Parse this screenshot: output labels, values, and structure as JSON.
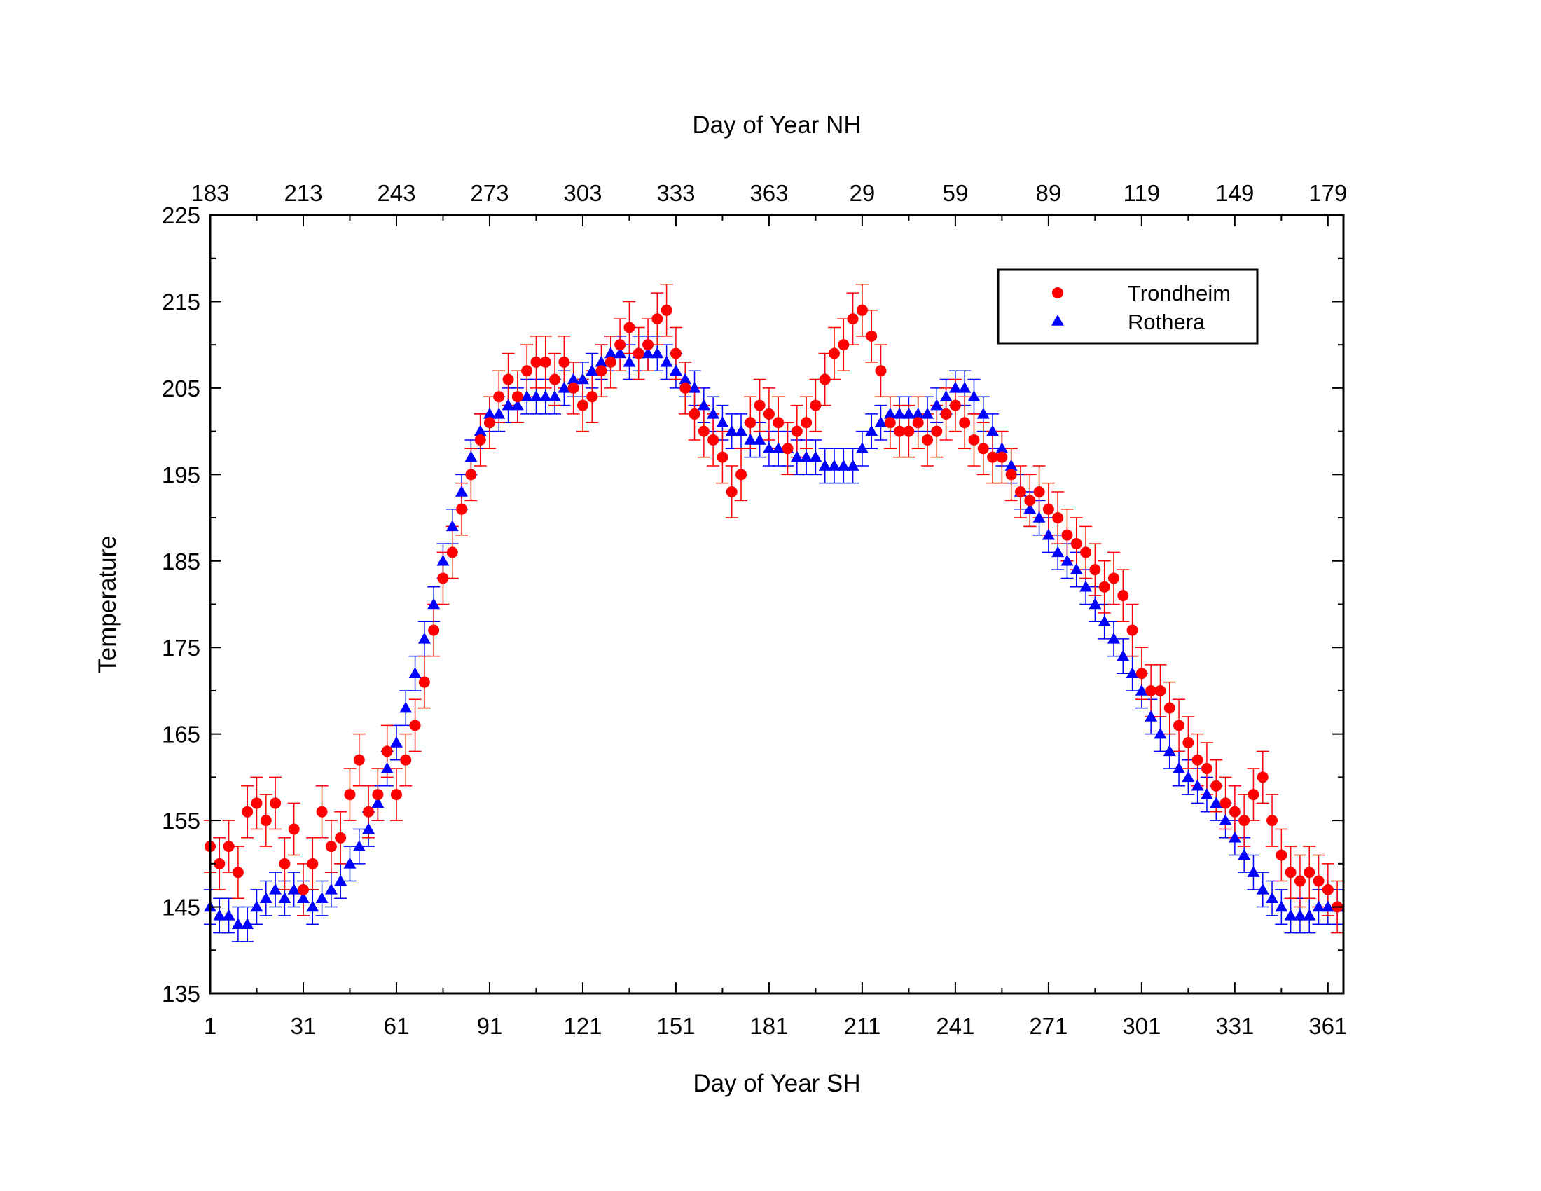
{
  "chart_data": {
    "type": "scatter",
    "title": "",
    "xlabel": "Day of Year SH",
    "x2label": "Day of Year NH",
    "ylabel": "Temperature",
    "xlim": [
      1,
      366
    ],
    "ylim": [
      135,
      225
    ],
    "x_ticks": [
      "1",
      "31",
      "61",
      "91",
      "121",
      "151",
      "181",
      "211",
      "241",
      "271",
      "301",
      "331",
      "361"
    ],
    "x2_ticks": [
      "183",
      "213",
      "243",
      "273",
      "303",
      "333",
      "363",
      "29",
      "59",
      "89",
      "119",
      "149",
      "179"
    ],
    "y_ticks": [
      "135",
      "145",
      "155",
      "165",
      "175",
      "185",
      "195",
      "205",
      "215",
      "225"
    ],
    "grid": false,
    "legend_position": "top-right",
    "error_bars": true,
    "series": [
      {
        "name": "Trondheim",
        "color": "#ff0000",
        "marker": "circle",
        "error": 3,
        "x": [
          1,
          4,
          7,
          10,
          13,
          16,
          19,
          22,
          25,
          28,
          31,
          34,
          37,
          40,
          43,
          46,
          49,
          52,
          55,
          58,
          61,
          64,
          67,
          70,
          73,
          76,
          79,
          82,
          85,
          88,
          91,
          94,
          97,
          100,
          103,
          106,
          109,
          112,
          115,
          118,
          121,
          124,
          127,
          130,
          133,
          136,
          139,
          142,
          145,
          148,
          151,
          154,
          157,
          160,
          163,
          166,
          169,
          172,
          175,
          178,
          181,
          184,
          187,
          190,
          193,
          196,
          199,
          202,
          205,
          208,
          211,
          214,
          217,
          220,
          223,
          226,
          229,
          232,
          235,
          238,
          241,
          244,
          247,
          250,
          253,
          256,
          259,
          262,
          265,
          268,
          271,
          274,
          277,
          280,
          283,
          286,
          289,
          292,
          295,
          298,
          301,
          304,
          307,
          310,
          313,
          316,
          319,
          322,
          325,
          328,
          331,
          334,
          337,
          340,
          343,
          346,
          349,
          352,
          355,
          358,
          361,
          364
        ],
        "y": [
          152,
          150,
          152,
          149,
          156,
          157,
          155,
          157,
          150,
          154,
          147,
          150,
          156,
          152,
          153,
          158,
          162,
          156,
          158,
          163,
          158,
          162,
          166,
          171,
          177,
          183,
          186,
          191,
          195,
          199,
          201,
          204,
          206,
          204,
          207,
          208,
          208,
          206,
          208,
          205,
          203,
          204,
          207,
          208,
          210,
          212,
          209,
          210,
          213,
          214,
          209,
          205,
          202,
          200,
          199,
          197,
          193,
          195,
          201,
          203,
          202,
          201,
          198,
          200,
          201,
          203,
          206,
          209,
          210,
          213,
          214,
          211,
          207,
          201,
          200,
          200,
          201,
          199,
          200,
          202,
          203,
          201,
          199,
          198,
          197,
          197,
          195,
          193,
          192,
          193,
          191,
          190,
          188,
          187,
          186,
          184,
          182,
          183,
          181,
          177,
          172,
          170,
          170,
          168,
          166,
          164,
          162,
          161,
          159,
          157,
          156,
          155,
          158,
          160,
          155,
          151,
          149,
          148,
          149,
          148,
          147,
          145
        ]
      },
      {
        "name": "Rothera",
        "color": "#0000ff",
        "marker": "triangle",
        "error": 2,
        "x": [
          1,
          4,
          7,
          10,
          13,
          16,
          19,
          22,
          25,
          28,
          31,
          34,
          37,
          40,
          43,
          46,
          49,
          52,
          55,
          58,
          61,
          64,
          67,
          70,
          73,
          76,
          79,
          82,
          85,
          88,
          91,
          94,
          97,
          100,
          103,
          106,
          109,
          112,
          115,
          118,
          121,
          124,
          127,
          130,
          133,
          136,
          139,
          142,
          145,
          148,
          151,
          154,
          157,
          160,
          163,
          166,
          169,
          172,
          175,
          178,
          181,
          184,
          187,
          190,
          193,
          196,
          199,
          202,
          205,
          208,
          211,
          214,
          217,
          220,
          223,
          226,
          229,
          232,
          235,
          238,
          241,
          244,
          247,
          250,
          253,
          256,
          259,
          262,
          265,
          268,
          271,
          274,
          277,
          280,
          283,
          286,
          289,
          292,
          295,
          298,
          301,
          304,
          307,
          310,
          313,
          316,
          319,
          322,
          325,
          328,
          331,
          334,
          337,
          340,
          343,
          346,
          349,
          352,
          355,
          358,
          361,
          364
        ],
        "y": [
          145,
          144,
          144,
          143,
          143,
          145,
          146,
          147,
          146,
          147,
          146,
          145,
          146,
          147,
          148,
          150,
          152,
          154,
          157,
          161,
          164,
          168,
          172,
          176,
          180,
          185,
          189,
          193,
          197,
          200,
          202,
          202,
          203,
          203,
          204,
          204,
          204,
          204,
          205,
          206,
          206,
          207,
          208,
          209,
          209,
          208,
          209,
          209,
          209,
          208,
          207,
          206,
          205,
          203,
          202,
          201,
          200,
          200,
          199,
          199,
          198,
          198,
          198,
          197,
          197,
          197,
          196,
          196,
          196,
          196,
          198,
          200,
          201,
          202,
          202,
          202,
          202,
          202,
          203,
          204,
          205,
          205,
          204,
          202,
          200,
          198,
          196,
          193,
          191,
          190,
          188,
          186,
          185,
          184,
          182,
          180,
          178,
          176,
          174,
          172,
          170,
          167,
          165,
          163,
          161,
          160,
          159,
          158,
          157,
          155,
          153,
          151,
          149,
          147,
          146,
          145,
          144,
          144,
          144,
          145,
          145,
          145
        ]
      }
    ]
  }
}
